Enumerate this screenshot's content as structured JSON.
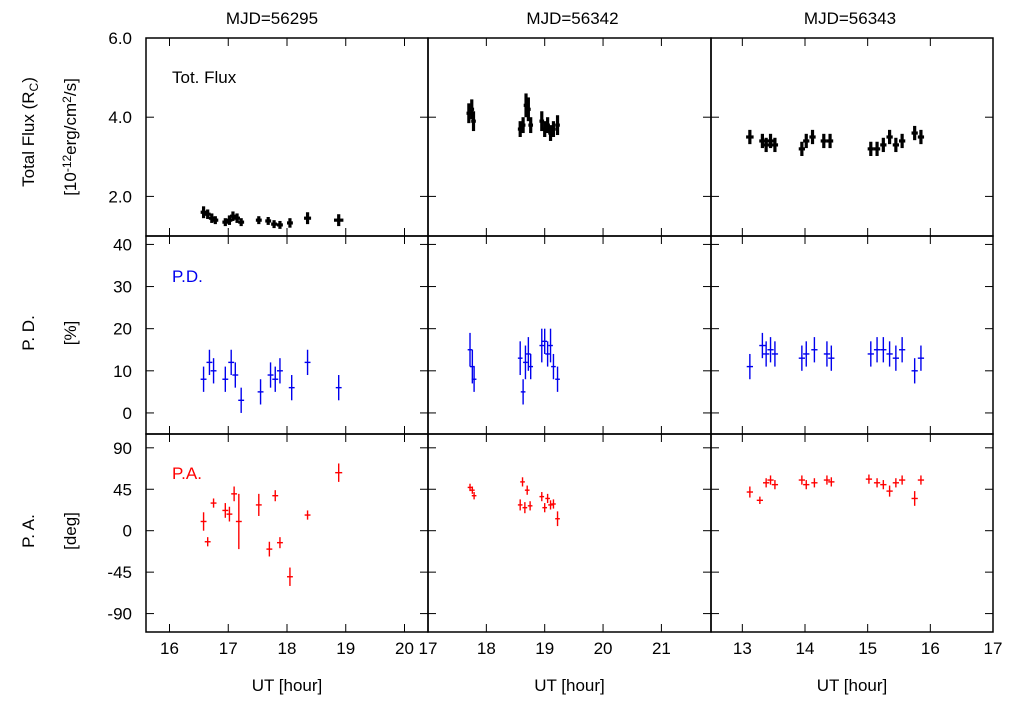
{
  "chart_data": {
    "type": "scatter",
    "columns": [
      {
        "title": "MJD=56295",
        "xlim": [
          15.6,
          20.4
        ],
        "xticks": [
          16,
          17,
          18,
          19,
          20
        ]
      },
      {
        "title": "MJD=56342",
        "xlim": [
          17.0,
          21.85
        ],
        "xticks": [
          17,
          18,
          19,
          20,
          21
        ]
      },
      {
        "title": "MJD=56343",
        "xlim": [
          12.5,
          17.0
        ],
        "xticks": [
          13,
          14,
          15,
          16,
          17
        ]
      }
    ],
    "xlabel": "UT [hour]",
    "rows": [
      {
        "key": "flux",
        "label": "Tot. Flux",
        "ylabel": [
          "Total Flux (R",
          "C",
          ")"
        ],
        "yunit": [
          "[10",
          "-12",
          "erg/cm",
          "2",
          "/s]"
        ],
        "ylim": [
          1.0,
          6.0
        ],
        "yticks": [
          2.0,
          4.0,
          6.0
        ],
        "ytick_labels": [
          "2.0",
          "4.0",
          "6.0"
        ],
        "color": "#000000",
        "stroke_width": 3.2
      },
      {
        "key": "pd",
        "label": "P.D.",
        "ylabel": [
          "P. D."
        ],
        "yunit": [
          "[%]"
        ],
        "ylim": [
          -5,
          42
        ],
        "yticks": [
          0,
          10,
          20,
          30,
          40
        ],
        "ytick_labels": [
          "0",
          "10",
          "20",
          "30",
          "40"
        ],
        "color": "#0000ee",
        "stroke_width": 1.4
      },
      {
        "key": "pa",
        "label": "P.A.",
        "ylabel": [
          "P. A."
        ],
        "yunit": [
          "[deg]"
        ],
        "ylim": [
          -110,
          105
        ],
        "yticks": [
          -90,
          -45,
          0,
          45,
          90
        ],
        "ytick_labels": [
          "-90",
          "-45",
          "0",
          "45",
          "90"
        ],
        "color": "#ff0000",
        "stroke_width": 1.4
      }
    ],
    "series": [
      {
        "name": "flux",
        "col0": [
          {
            "x": 16.58,
            "y": 1.6,
            "xe": 0.05,
            "ye": 0.15
          },
          {
            "x": 16.65,
            "y": 1.55,
            "xe": 0.05,
            "ye": 0.12
          },
          {
            "x": 16.72,
            "y": 1.45,
            "xe": 0.05,
            "ye": 0.12
          },
          {
            "x": 16.78,
            "y": 1.4,
            "xe": 0.05,
            "ye": 0.1
          },
          {
            "x": 16.95,
            "y": 1.35,
            "xe": 0.05,
            "ye": 0.1
          },
          {
            "x": 17.02,
            "y": 1.4,
            "xe": 0.05,
            "ye": 0.12
          },
          {
            "x": 17.08,
            "y": 1.5,
            "xe": 0.05,
            "ye": 0.12
          },
          {
            "x": 17.15,
            "y": 1.45,
            "xe": 0.05,
            "ye": 0.12
          },
          {
            "x": 17.22,
            "y": 1.35,
            "xe": 0.05,
            "ye": 0.1
          },
          {
            "x": 17.52,
            "y": 1.4,
            "xe": 0.05,
            "ye": 0.1
          },
          {
            "x": 17.68,
            "y": 1.38,
            "xe": 0.05,
            "ye": 0.1
          },
          {
            "x": 17.78,
            "y": 1.3,
            "xe": 0.05,
            "ye": 0.1
          },
          {
            "x": 17.88,
            "y": 1.28,
            "xe": 0.05,
            "ye": 0.1
          },
          {
            "x": 18.05,
            "y": 1.33,
            "xe": 0.05,
            "ye": 0.12
          },
          {
            "x": 18.35,
            "y": 1.45,
            "xe": 0.06,
            "ye": 0.15
          },
          {
            "x": 18.88,
            "y": 1.4,
            "xe": 0.08,
            "ye": 0.15
          }
        ],
        "col1": [
          {
            "x": 17.7,
            "y": 4.1,
            "xe": 0.04,
            "ye": 0.25
          },
          {
            "x": 17.75,
            "y": 4.2,
            "xe": 0.04,
            "ye": 0.25
          },
          {
            "x": 17.78,
            "y": 3.9,
            "xe": 0.04,
            "ye": 0.25
          },
          {
            "x": 18.58,
            "y": 3.7,
            "xe": 0.04,
            "ye": 0.2
          },
          {
            "x": 18.63,
            "y": 3.8,
            "xe": 0.04,
            "ye": 0.2
          },
          {
            "x": 18.68,
            "y": 4.3,
            "xe": 0.04,
            "ye": 0.3
          },
          {
            "x": 18.72,
            "y": 4.2,
            "xe": 0.04,
            "ye": 0.3
          },
          {
            "x": 18.76,
            "y": 3.8,
            "xe": 0.04,
            "ye": 0.2
          },
          {
            "x": 18.95,
            "y": 3.9,
            "xe": 0.04,
            "ye": 0.25
          },
          {
            "x": 19.0,
            "y": 3.7,
            "xe": 0.04,
            "ye": 0.2
          },
          {
            "x": 19.05,
            "y": 3.8,
            "xe": 0.04,
            "ye": 0.2
          },
          {
            "x": 19.1,
            "y": 3.6,
            "xe": 0.04,
            "ye": 0.2
          },
          {
            "x": 19.15,
            "y": 3.7,
            "xe": 0.04,
            "ye": 0.2
          },
          {
            "x": 19.22,
            "y": 3.8,
            "xe": 0.04,
            "ye": 0.25
          }
        ],
        "col2": [
          {
            "x": 13.12,
            "y": 3.5,
            "xe": 0.06,
            "ye": 0.18
          },
          {
            "x": 13.32,
            "y": 3.4,
            "xe": 0.05,
            "ye": 0.18
          },
          {
            "x": 13.38,
            "y": 3.3,
            "xe": 0.05,
            "ye": 0.18
          },
          {
            "x": 13.45,
            "y": 3.4,
            "xe": 0.05,
            "ye": 0.18
          },
          {
            "x": 13.52,
            "y": 3.3,
            "xe": 0.05,
            "ye": 0.18
          },
          {
            "x": 13.95,
            "y": 3.2,
            "xe": 0.05,
            "ye": 0.18
          },
          {
            "x": 14.02,
            "y": 3.4,
            "xe": 0.05,
            "ye": 0.18
          },
          {
            "x": 14.12,
            "y": 3.5,
            "xe": 0.05,
            "ye": 0.18
          },
          {
            "x": 14.3,
            "y": 3.4,
            "xe": 0.05,
            "ye": 0.18
          },
          {
            "x": 14.4,
            "y": 3.4,
            "xe": 0.05,
            "ye": 0.18
          },
          {
            "x": 15.05,
            "y": 3.2,
            "xe": 0.05,
            "ye": 0.18
          },
          {
            "x": 15.15,
            "y": 3.2,
            "xe": 0.05,
            "ye": 0.18
          },
          {
            "x": 15.25,
            "y": 3.3,
            "xe": 0.05,
            "ye": 0.18
          },
          {
            "x": 15.35,
            "y": 3.5,
            "xe": 0.05,
            "ye": 0.18
          },
          {
            "x": 15.45,
            "y": 3.3,
            "xe": 0.05,
            "ye": 0.18
          },
          {
            "x": 15.55,
            "y": 3.4,
            "xe": 0.05,
            "ye": 0.18
          },
          {
            "x": 15.75,
            "y": 3.6,
            "xe": 0.05,
            "ye": 0.18
          },
          {
            "x": 15.85,
            "y": 3.5,
            "xe": 0.05,
            "ye": 0.18
          }
        ]
      },
      {
        "name": "pd",
        "col0": [
          {
            "x": 16.58,
            "y": 8,
            "xe": 0.05,
            "ye": 3
          },
          {
            "x": 16.68,
            "y": 12,
            "xe": 0.05,
            "ye": 3
          },
          {
            "x": 16.75,
            "y": 10,
            "xe": 0.05,
            "ye": 3
          },
          {
            "x": 16.95,
            "y": 8,
            "xe": 0.05,
            "ye": 3
          },
          {
            "x": 17.05,
            "y": 12,
            "xe": 0.05,
            "ye": 3
          },
          {
            "x": 17.12,
            "y": 9,
            "xe": 0.05,
            "ye": 3
          },
          {
            "x": 17.22,
            "y": 3,
            "xe": 0.05,
            "ye": 3
          },
          {
            "x": 17.55,
            "y": 5,
            "xe": 0.05,
            "ye": 3
          },
          {
            "x": 17.72,
            "y": 9,
            "xe": 0.05,
            "ye": 3
          },
          {
            "x": 17.8,
            "y": 8,
            "xe": 0.05,
            "ye": 3
          },
          {
            "x": 17.88,
            "y": 10,
            "xe": 0.05,
            "ye": 3
          },
          {
            "x": 18.08,
            "y": 6,
            "xe": 0.05,
            "ye": 3
          },
          {
            "x": 18.35,
            "y": 12,
            "xe": 0.05,
            "ye": 3
          },
          {
            "x": 18.88,
            "y": 6,
            "xe": 0.05,
            "ye": 3
          }
        ],
        "col1": [
          {
            "x": 17.72,
            "y": 15,
            "xe": 0.04,
            "ye": 4
          },
          {
            "x": 17.76,
            "y": 11,
            "xe": 0.04,
            "ye": 4
          },
          {
            "x": 17.79,
            "y": 8,
            "xe": 0.04,
            "ye": 3
          },
          {
            "x": 18.58,
            "y": 13,
            "xe": 0.04,
            "ye": 4
          },
          {
            "x": 18.63,
            "y": 5,
            "xe": 0.04,
            "ye": 3
          },
          {
            "x": 18.67,
            "y": 12,
            "xe": 0.04,
            "ye": 4
          },
          {
            "x": 18.72,
            "y": 14,
            "xe": 0.04,
            "ye": 4
          },
          {
            "x": 18.76,
            "y": 11,
            "xe": 0.04,
            "ye": 3
          },
          {
            "x": 18.95,
            "y": 16,
            "xe": 0.04,
            "ye": 4
          },
          {
            "x": 19.0,
            "y": 17,
            "xe": 0.04,
            "ye": 3
          },
          {
            "x": 19.05,
            "y": 14,
            "xe": 0.04,
            "ye": 3
          },
          {
            "x": 19.1,
            "y": 16,
            "xe": 0.04,
            "ye": 4
          },
          {
            "x": 19.15,
            "y": 11,
            "xe": 0.04,
            "ye": 3
          },
          {
            "x": 19.22,
            "y": 8,
            "xe": 0.04,
            "ye": 3
          }
        ],
        "col2": [
          {
            "x": 13.12,
            "y": 11,
            "xe": 0.05,
            "ye": 3
          },
          {
            "x": 13.32,
            "y": 16,
            "xe": 0.05,
            "ye": 3
          },
          {
            "x": 13.38,
            "y": 14,
            "xe": 0.05,
            "ye": 3
          },
          {
            "x": 13.45,
            "y": 15,
            "xe": 0.05,
            "ye": 3
          },
          {
            "x": 13.52,
            "y": 14,
            "xe": 0.05,
            "ye": 3
          },
          {
            "x": 13.95,
            "y": 13,
            "xe": 0.05,
            "ye": 3
          },
          {
            "x": 14.02,
            "y": 14,
            "xe": 0.05,
            "ye": 3
          },
          {
            "x": 14.15,
            "y": 15,
            "xe": 0.05,
            "ye": 3
          },
          {
            "x": 14.35,
            "y": 14,
            "xe": 0.05,
            "ye": 3
          },
          {
            "x": 14.42,
            "y": 13,
            "xe": 0.05,
            "ye": 3
          },
          {
            "x": 15.05,
            "y": 14,
            "xe": 0.05,
            "ye": 3
          },
          {
            "x": 15.15,
            "y": 15,
            "xe": 0.05,
            "ye": 3
          },
          {
            "x": 15.25,
            "y": 15,
            "xe": 0.05,
            "ye": 3
          },
          {
            "x": 15.35,
            "y": 14,
            "xe": 0.05,
            "ye": 3
          },
          {
            "x": 15.45,
            "y": 13,
            "xe": 0.05,
            "ye": 3
          },
          {
            "x": 15.55,
            "y": 15,
            "xe": 0.05,
            "ye": 3
          },
          {
            "x": 15.75,
            "y": 10,
            "xe": 0.05,
            "ye": 3
          },
          {
            "x": 15.85,
            "y": 13,
            "xe": 0.05,
            "ye": 3
          }
        ]
      },
      {
        "name": "pa",
        "col0": [
          {
            "x": 16.58,
            "y": 10,
            "xe": 0.05,
            "ye": 10
          },
          {
            "x": 16.65,
            "y": -12,
            "xe": 0.05,
            "ye": 5
          },
          {
            "x": 16.75,
            "y": 30,
            "xe": 0.05,
            "ye": 5
          },
          {
            "x": 16.95,
            "y": 22,
            "xe": 0.05,
            "ye": 8
          },
          {
            "x": 17.02,
            "y": 18,
            "xe": 0.05,
            "ye": 8
          },
          {
            "x": 17.1,
            "y": 40,
            "xe": 0.05,
            "ye": 8
          },
          {
            "x": 17.18,
            "y": 10,
            "xe": 0.05,
            "ye": 30
          },
          {
            "x": 17.52,
            "y": 28,
            "xe": 0.05,
            "ye": 12
          },
          {
            "x": 17.7,
            "y": -20,
            "xe": 0.05,
            "ye": 8
          },
          {
            "x": 17.8,
            "y": 38,
            "xe": 0.05,
            "ye": 6
          },
          {
            "x": 17.88,
            "y": -13,
            "xe": 0.05,
            "ye": 6
          },
          {
            "x": 18.05,
            "y": -50,
            "xe": 0.05,
            "ye": 10
          },
          {
            "x": 18.35,
            "y": 17,
            "xe": 0.05,
            "ye": 5
          },
          {
            "x": 18.88,
            "y": 63,
            "xe": 0.06,
            "ye": 10
          }
        ],
        "col1": [
          {
            "x": 17.72,
            "y": 47,
            "xe": 0.04,
            "ye": 4
          },
          {
            "x": 17.76,
            "y": 44,
            "xe": 0.04,
            "ye": 4
          },
          {
            "x": 17.79,
            "y": 38,
            "xe": 0.04,
            "ye": 4
          },
          {
            "x": 18.58,
            "y": 28,
            "xe": 0.04,
            "ye": 6
          },
          {
            "x": 18.62,
            "y": 53,
            "xe": 0.04,
            "ye": 5
          },
          {
            "x": 18.66,
            "y": 25,
            "xe": 0.04,
            "ye": 6
          },
          {
            "x": 18.7,
            "y": 44,
            "xe": 0.04,
            "ye": 5
          },
          {
            "x": 18.75,
            "y": 27,
            "xe": 0.04,
            "ye": 5
          },
          {
            "x": 18.95,
            "y": 37,
            "xe": 0.04,
            "ye": 5
          },
          {
            "x": 19.0,
            "y": 25,
            "xe": 0.04,
            "ye": 5
          },
          {
            "x": 19.05,
            "y": 35,
            "xe": 0.04,
            "ye": 5
          },
          {
            "x": 19.1,
            "y": 28,
            "xe": 0.04,
            "ye": 5
          },
          {
            "x": 19.15,
            "y": 29,
            "xe": 0.04,
            "ye": 5
          },
          {
            "x": 19.22,
            "y": 13,
            "xe": 0.04,
            "ye": 8
          }
        ],
        "col2": [
          {
            "x": 13.12,
            "y": 42,
            "xe": 0.05,
            "ye": 6
          },
          {
            "x": 13.28,
            "y": 33,
            "xe": 0.05,
            "ye": 4
          },
          {
            "x": 13.38,
            "y": 52,
            "xe": 0.05,
            "ye": 5
          },
          {
            "x": 13.45,
            "y": 55,
            "xe": 0.05,
            "ye": 5
          },
          {
            "x": 13.52,
            "y": 50,
            "xe": 0.05,
            "ye": 5
          },
          {
            "x": 13.95,
            "y": 55,
            "xe": 0.05,
            "ye": 5
          },
          {
            "x": 14.02,
            "y": 50,
            "xe": 0.05,
            "ye": 5
          },
          {
            "x": 14.15,
            "y": 52,
            "xe": 0.05,
            "ye": 5
          },
          {
            "x": 14.35,
            "y": 55,
            "xe": 0.05,
            "ye": 5
          },
          {
            "x": 14.42,
            "y": 53,
            "xe": 0.05,
            "ye": 5
          },
          {
            "x": 15.02,
            "y": 56,
            "xe": 0.05,
            "ye": 5
          },
          {
            "x": 15.15,
            "y": 52,
            "xe": 0.05,
            "ye": 5
          },
          {
            "x": 15.25,
            "y": 50,
            "xe": 0.05,
            "ye": 5
          },
          {
            "x": 15.35,
            "y": 43,
            "xe": 0.05,
            "ye": 6
          },
          {
            "x": 15.45,
            "y": 52,
            "xe": 0.05,
            "ye": 5
          },
          {
            "x": 15.55,
            "y": 55,
            "xe": 0.05,
            "ye": 5
          },
          {
            "x": 15.75,
            "y": 35,
            "xe": 0.05,
            "ye": 8
          },
          {
            "x": 15.85,
            "y": 55,
            "xe": 0.05,
            "ye": 5
          }
        ]
      }
    ]
  }
}
